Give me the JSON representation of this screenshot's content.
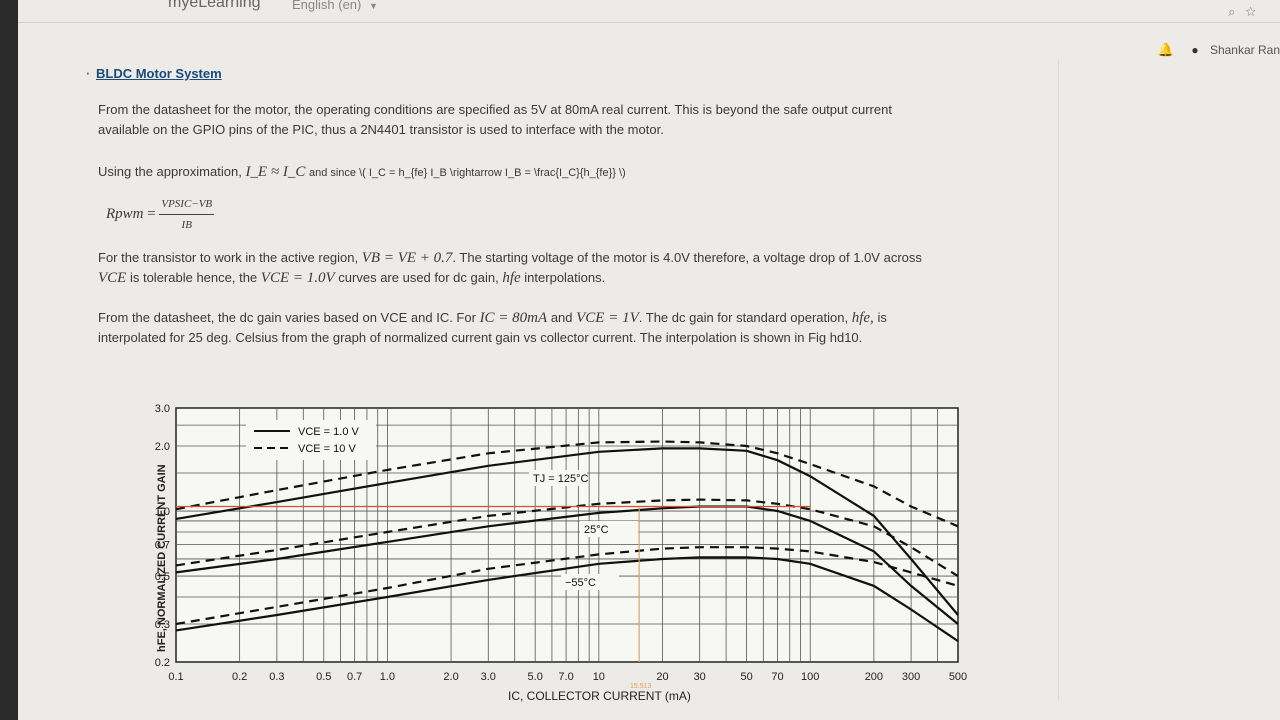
{
  "topbar": {
    "brand": "myeLearning",
    "language": "English (en)",
    "icons": [
      "search-icon",
      "star-icon"
    ]
  },
  "userbar": {
    "username": "Shankar Ran",
    "icons": [
      "bell-icon",
      "chat-icon"
    ]
  },
  "section": {
    "title": "BLDC Motor System"
  },
  "paragraphs": {
    "p1_line1": "From the datasheet for the motor, the operating conditions are specified as 5V at 80mA real current. This is beyond the safe output current",
    "p1_line2": "available on the GPIO pins of the PIC, thus a 2N4401 transistor is used to interface with the motor.",
    "p2_prefix": "Using the approximation,",
    "p2_math": "I_E ≈ I_C",
    "p2_mid": "and since \\( I_C = h_{fe} I_B \\rightarrow I_B = \\frac{I_C}{h_{fe}} \\)",
    "eq_lhs": "Rpwm",
    "eq_num": "VPSIC−VB",
    "eq_den": "IB",
    "p3_line1_a": "For the transistor to work in the active region,",
    "p3_line1_math": "VB = VE + 0.7",
    "p3_line1_b": ". The starting voltage of the motor is 4.0V therefore, a voltage drop of 1.0V across",
    "p3_line2_math1": "VCE",
    "p3_line2_a": "is tolerable hence, the",
    "p3_line2_math2": "VCE = 1.0V",
    "p3_line2_b": "curves are used for dc gain,",
    "p3_line2_math3": "hfe",
    "p3_line2_c": "interpolations.",
    "p4_line1_a": "From the datasheet, the dc gain varies based on VCE and IC. For",
    "p4_line1_math1": "IC = 80mA",
    "p4_line1_b": "and",
    "p4_line1_math2": "VCE = 1V",
    "p4_line1_c": ". The dc gain for standard operation,",
    "p4_line1_math3": "hfe,",
    "p4_line1_d": "is",
    "p4_line2": "interpolated for 25 deg. Celsius from the graph of normalized current gain vs collector current. The interpolation is shown in Fig hd10."
  },
  "chart_data": {
    "type": "line",
    "xlabel": "IC, COLLECTOR CURRENT (mA)",
    "ylabel": "hFE, NORMALIZED CURRENT GAIN",
    "xscale": "log",
    "yscale": "log",
    "xlim": [
      0.1,
      500
    ],
    "ylim": [
      0.2,
      3.0
    ],
    "x_ticks": [
      "0.1",
      "0.2",
      "0.3",
      "0.5",
      "0.7",
      "1.0",
      "2.0",
      "3.0",
      "5.0",
      "7.0",
      "10",
      "20",
      "30",
      "50",
      "70",
      "100",
      "200",
      "300",
      "500"
    ],
    "y_ticks": [
      "0.2",
      "0.3",
      "0.5",
      "0.7",
      "1.0",
      "2.0",
      "3.0"
    ],
    "legend": [
      "VCE = 1.0 V",
      "VCE = 10 V"
    ],
    "annotations": [
      "TJ = 125°C",
      "25°C",
      "−55°C",
      "15.513"
    ],
    "grid": true,
    "series": [
      {
        "name": "VCE = 1.0 V",
        "group": "TJ = 125°C",
        "style": "solid",
        "x": [
          0.1,
          0.3,
          1.0,
          3.0,
          10,
          20,
          30,
          50,
          70,
          100,
          200,
          300,
          500
        ],
        "y": [
          0.92,
          1.1,
          1.35,
          1.62,
          1.88,
          1.95,
          1.95,
          1.9,
          1.72,
          1.45,
          0.95,
          0.6,
          0.33
        ]
      },
      {
        "name": "VCE = 10 V",
        "group": "TJ = 125°C",
        "style": "dashed",
        "x": [
          0.1,
          0.3,
          1.0,
          3.0,
          10,
          20,
          30,
          50,
          70,
          100,
          200,
          300,
          500
        ],
        "y": [
          1.02,
          1.25,
          1.55,
          1.85,
          2.08,
          2.1,
          2.08,
          2.0,
          1.85,
          1.65,
          1.3,
          1.05,
          0.85
        ]
      },
      {
        "name": "VCE = 1.0 V",
        "group": "25°C",
        "style": "solid",
        "x": [
          0.1,
          0.3,
          1.0,
          3.0,
          10,
          20,
          30,
          50,
          70,
          100,
          200,
          300,
          500
        ],
        "y": [
          0.52,
          0.6,
          0.72,
          0.85,
          0.98,
          1.03,
          1.05,
          1.05,
          1.0,
          0.9,
          0.65,
          0.45,
          0.3
        ]
      },
      {
        "name": "VCE = 10 V",
        "group": "25°C",
        "style": "dashed",
        "x": [
          0.1,
          0.3,
          1.0,
          3.0,
          10,
          20,
          30,
          50,
          70,
          100,
          200,
          300,
          500
        ],
        "y": [
          0.56,
          0.66,
          0.8,
          0.95,
          1.08,
          1.12,
          1.13,
          1.12,
          1.08,
          1.02,
          0.85,
          0.68,
          0.5
        ]
      },
      {
        "name": "VCE = 1.0 V",
        "group": "−55°C",
        "style": "solid",
        "x": [
          0.1,
          0.3,
          1.0,
          3.0,
          10,
          20,
          30,
          50,
          70,
          100,
          200,
          300,
          500
        ],
        "y": [
          0.28,
          0.33,
          0.4,
          0.48,
          0.57,
          0.6,
          0.61,
          0.61,
          0.6,
          0.57,
          0.45,
          0.35,
          0.25
        ]
      },
      {
        "name": "VCE = 10 V",
        "group": "−55°C",
        "style": "dashed",
        "x": [
          0.1,
          0.3,
          1.0,
          3.0,
          10,
          20,
          30,
          50,
          70,
          100,
          200,
          300,
          500
        ],
        "y": [
          0.3,
          0.36,
          0.44,
          0.54,
          0.63,
          0.67,
          0.68,
          0.68,
          0.67,
          0.65,
          0.58,
          0.52,
          0.45
        ]
      }
    ],
    "interpolation_lines": [
      {
        "orientation": "horizontal",
        "y": 1.05,
        "color": "#d9541e"
      },
      {
        "orientation": "vertical",
        "x": 15.513,
        "color": "#e0a060"
      }
    ]
  }
}
